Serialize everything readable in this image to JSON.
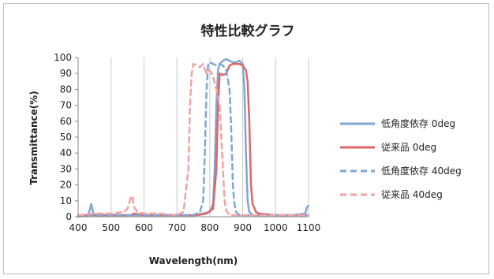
{
  "chart_data": {
    "type": "line",
    "title": "特性比較グラフ",
    "xlabel": "Wavelength(nm)",
    "ylabel": "Transmittance(%)",
    "xlim": [
      400,
      1100
    ],
    "ylim": [
      0,
      100
    ],
    "xticks": [
      400,
      500,
      600,
      700,
      800,
      900,
      1000,
      1100
    ],
    "yticks": [
      0,
      10,
      20,
      30,
      40,
      50,
      60,
      70,
      80,
      90,
      100
    ],
    "grid": "vertical",
    "legend_position": "right",
    "series": [
      {
        "name": "低角度依存 0deg",
        "color": "#7fa7d6",
        "dash": "solid",
        "x": [
          400,
          430,
          435,
          440,
          445,
          450,
          500,
          550,
          600,
          650,
          700,
          750,
          780,
          800,
          810,
          815,
          820,
          825,
          830,
          835,
          840,
          850,
          860,
          870,
          880,
          890,
          900,
          905,
          910,
          915,
          920,
          930,
          950,
          1000,
          1050,
          1090,
          1095,
          1100
        ],
        "y": [
          0,
          1,
          4,
          8,
          3,
          1,
          1,
          1,
          1,
          1,
          1,
          1,
          2,
          3,
          8,
          30,
          70,
          92,
          96,
          97,
          98,
          99,
          98,
          97,
          97,
          98,
          96,
          80,
          40,
          10,
          3,
          1,
          1,
          1,
          1,
          2,
          6,
          7
        ]
      },
      {
        "name": "従来品 0deg",
        "color": "#e06666",
        "dash": "solid",
        "x": [
          400,
          500,
          560,
          570,
          600,
          700,
          760,
          790,
          810,
          820,
          825,
          830,
          840,
          850,
          860,
          870,
          880,
          890,
          900,
          910,
          915,
          920,
          925,
          930,
          940,
          950,
          1000,
          1050,
          1100
        ],
        "y": [
          1,
          1,
          1,
          2,
          1,
          1,
          1,
          2,
          5,
          30,
          70,
          90,
          89,
          90,
          95,
          96,
          96,
          96,
          95,
          92,
          85,
          60,
          20,
          8,
          3,
          2,
          1,
          1,
          1
        ]
      },
      {
        "name": "低角度依存 40deg",
        "color": "#7fa7d6",
        "dash": "dashed",
        "x": [
          400,
          500,
          600,
          700,
          750,
          770,
          780,
          785,
          790,
          795,
          800,
          810,
          820,
          830,
          840,
          850,
          860,
          865,
          870,
          875,
          880,
          890,
          900,
          950,
          1000,
          1100
        ],
        "y": [
          1,
          1,
          1,
          1,
          1,
          3,
          10,
          40,
          80,
          96,
          97,
          96,
          95,
          96,
          95,
          92,
          80,
          55,
          20,
          8,
          3,
          1,
          1,
          1,
          1,
          1
        ]
      },
      {
        "name": "従来品 40deg",
        "color": "#f2a3a3",
        "dash": "dashed",
        "x": [
          400,
          450,
          500,
          540,
          550,
          560,
          565,
          570,
          580,
          600,
          650,
          700,
          720,
          735,
          740,
          745,
          750,
          760,
          770,
          780,
          790,
          800,
          810,
          820,
          830,
          840,
          845,
          850,
          860,
          900,
          1000,
          1100
        ],
        "y": [
          1,
          2,
          2,
          3,
          5,
          12,
          13,
          6,
          3,
          2,
          2,
          1,
          3,
          30,
          70,
          90,
          96,
          95,
          94,
          96,
          90,
          92,
          88,
          80,
          70,
          30,
          10,
          4,
          1,
          1,
          1,
          1
        ]
      }
    ]
  }
}
